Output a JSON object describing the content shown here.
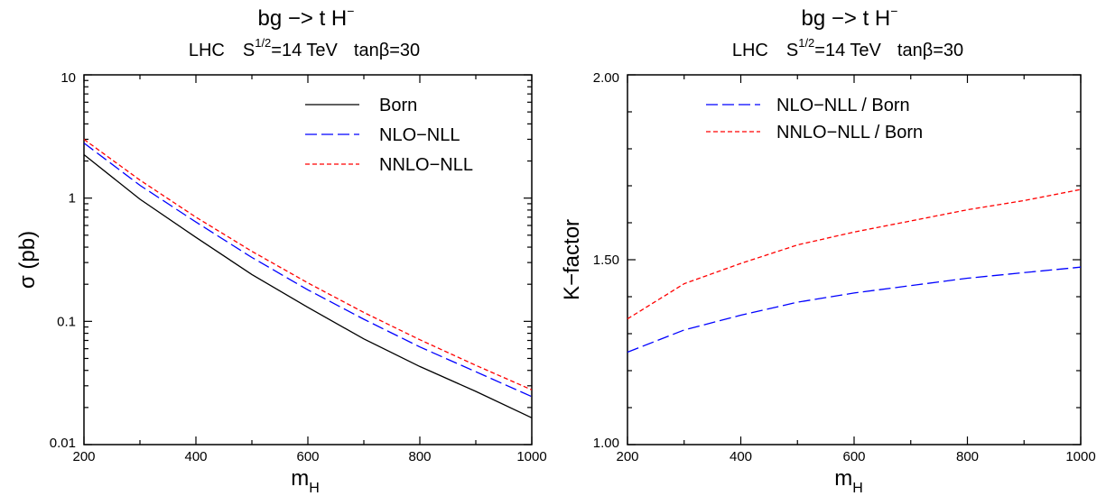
{
  "chart_data": [
    {
      "type": "line",
      "title": "bg −> t H",
      "title_superscript": "−",
      "subtitle_parts": {
        "collider": "LHC",
        "energy_prefix": "S",
        "energy_sup": "1/2",
        "energy_value": "=14 TeV",
        "tanbeta": "tanβ=30"
      },
      "xlabel": "m",
      "xlabel_sub": "H",
      "ylabel": "σ (pb)",
      "yscale": "log",
      "xlim": [
        200,
        1000
      ],
      "ylim": [
        0.01,
        10
      ],
      "xticks": [
        "200",
        "400",
        "600",
        "800",
        "1000"
      ],
      "xtick_values": [
        200,
        400,
        600,
        800,
        1000
      ],
      "yticks": [
        "0.01",
        "0.1",
        "1",
        "10"
      ],
      "ytick_values": [
        0.01,
        0.1,
        1,
        10
      ],
      "legend_position": "top-right",
      "x": [
        200,
        300,
        400,
        500,
        600,
        700,
        800,
        900,
        1000
      ],
      "series": [
        {
          "name": "Born",
          "color": "#000000",
          "dash": "solid",
          "values": [
            2.25,
            0.98,
            0.48,
            0.24,
            0.13,
            0.072,
            0.043,
            0.027,
            0.0165
          ]
        },
        {
          "name": "NLO−NLL",
          "color": "#0000ff",
          "dash": "longdash",
          "values": [
            2.8,
            1.27,
            0.64,
            0.33,
            0.18,
            0.104,
            0.062,
            0.039,
            0.0245
          ]
        },
        {
          "name": "NNLO−NLL",
          "color": "#ff0000",
          "dash": "shortdash",
          "values": [
            3.0,
            1.4,
            0.7,
            0.37,
            0.205,
            0.118,
            0.071,
            0.044,
            0.0278
          ]
        }
      ]
    },
    {
      "type": "line",
      "title": "bg −> t H",
      "title_superscript": "−",
      "subtitle_parts": {
        "collider": "LHC",
        "energy_prefix": "S",
        "energy_sup": "1/2",
        "energy_value": "=14 TeV",
        "tanbeta": "tanβ=30"
      },
      "xlabel": "m",
      "xlabel_sub": "H",
      "ylabel": "K−factor",
      "yscale": "linear",
      "xlim": [
        200,
        1000
      ],
      "ylim": [
        1.0,
        2.0
      ],
      "xticks": [
        "200",
        "400",
        "600",
        "800",
        "1000"
      ],
      "xtick_values": [
        200,
        400,
        600,
        800,
        1000
      ],
      "yticks": [
        "1.00",
        "1.50",
        "2.00"
      ],
      "ytick_values": [
        1.0,
        1.5,
        2.0
      ],
      "legend_position": "top-right",
      "x": [
        200,
        300,
        400,
        500,
        600,
        700,
        800,
        900,
        1000
      ],
      "series": [
        {
          "name": "NLO−NLL / Born",
          "color": "#0000ff",
          "dash": "longdash",
          "values": [
            1.25,
            1.31,
            1.35,
            1.385,
            1.41,
            1.43,
            1.45,
            1.465,
            1.48
          ]
        },
        {
          "name": "NNLO−NLL / Born",
          "color": "#ff0000",
          "dash": "shortdash",
          "values": [
            1.34,
            1.435,
            1.49,
            1.54,
            1.575,
            1.605,
            1.635,
            1.66,
            1.69
          ]
        }
      ]
    }
  ]
}
